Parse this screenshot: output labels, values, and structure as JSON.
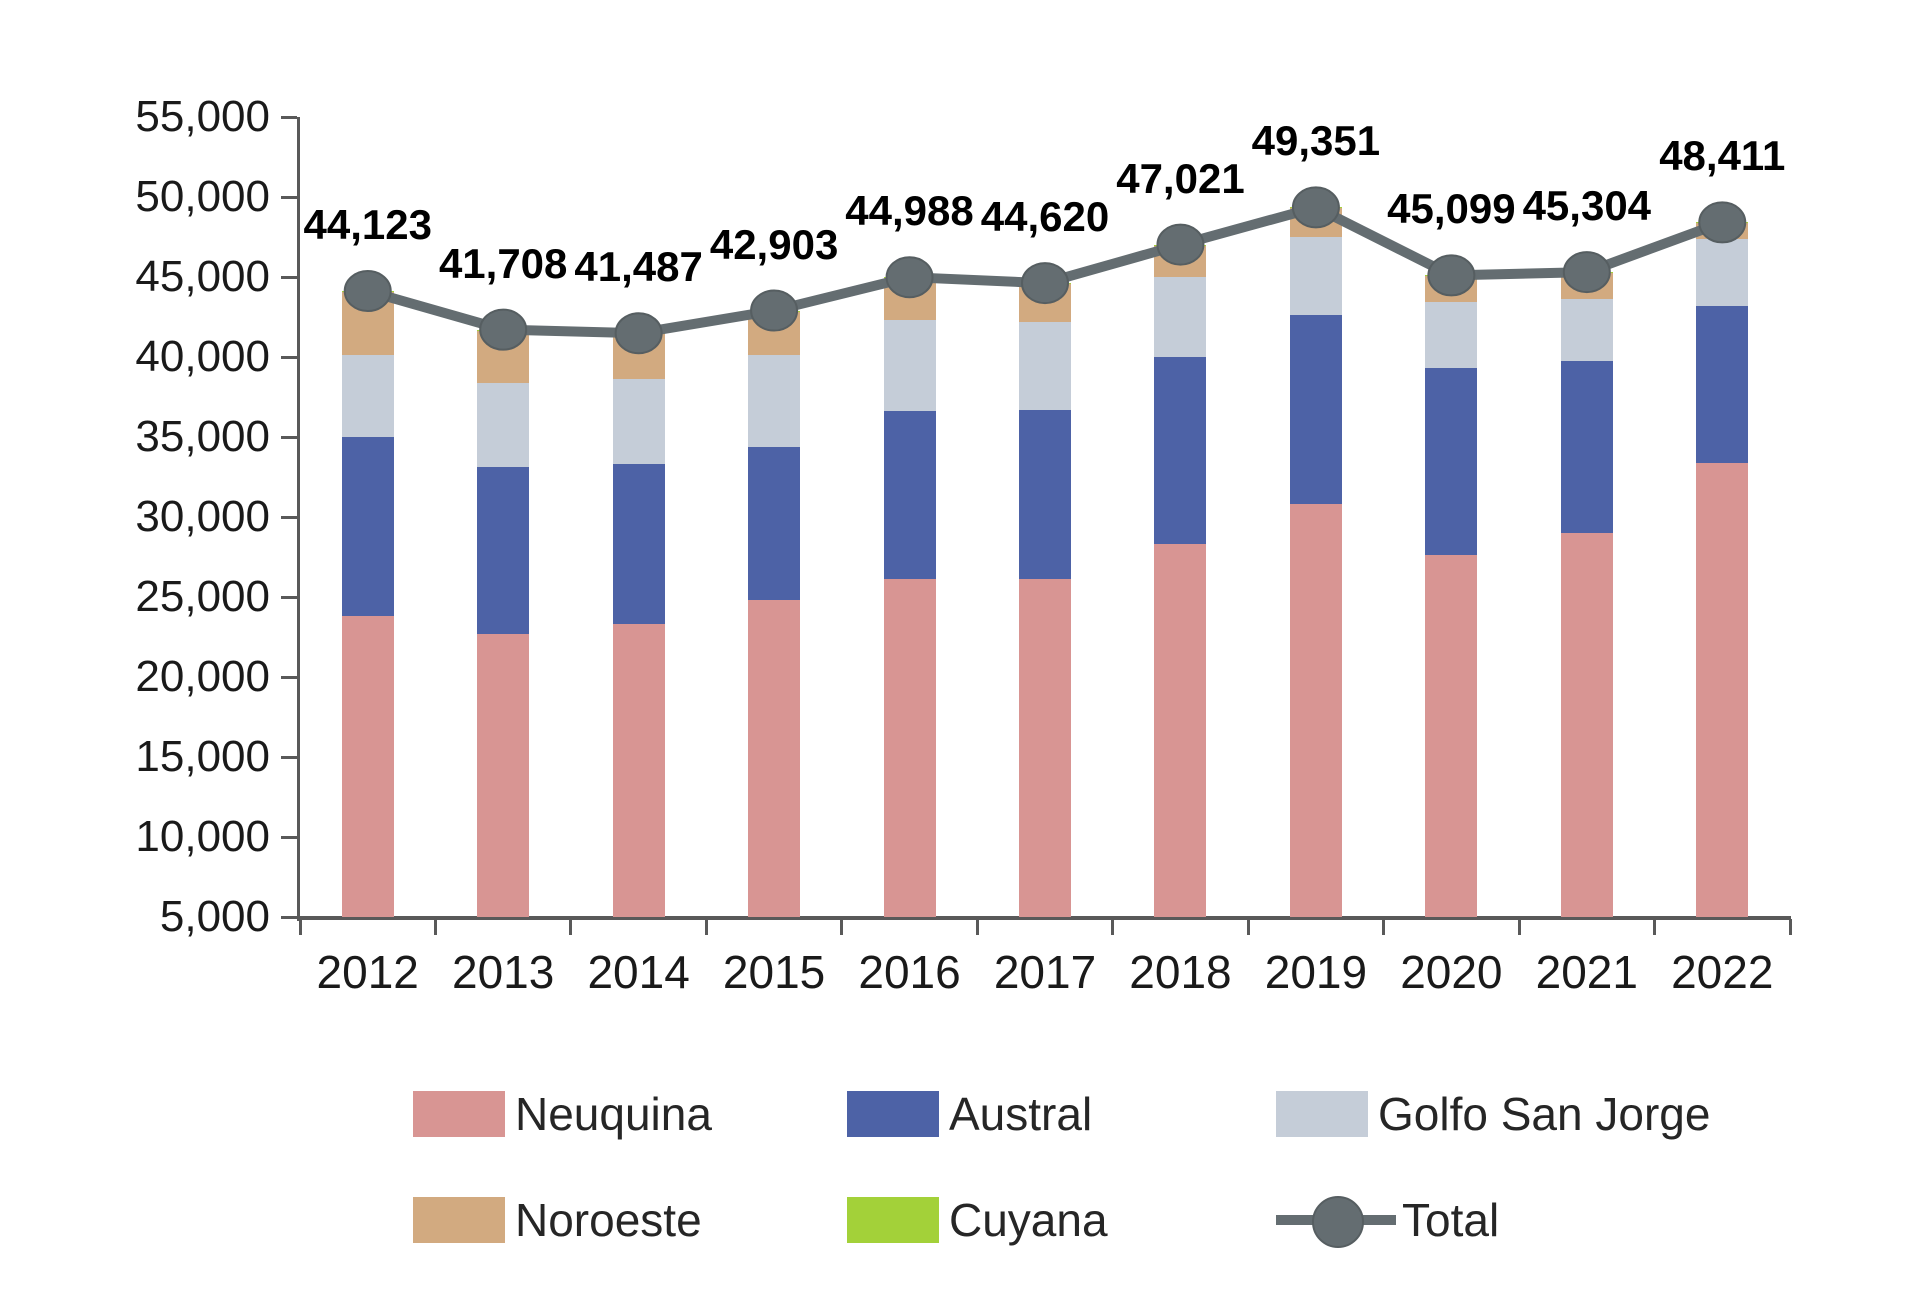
{
  "page": {
    "background": "#ffffff"
  },
  "chart_data": {
    "type": "bar",
    "subtype": "stacked-column-with-total-line",
    "title": "",
    "xlabel": "",
    "ylabel": "",
    "categories": [
      "2012",
      "2013",
      "2014",
      "2015",
      "2016",
      "2017",
      "2018",
      "2019",
      "2020",
      "2021",
      "2022"
    ],
    "series": [
      {
        "name": "Neuquina",
        "color": "#d89593",
        "values": [
          23800,
          22700,
          23300,
          24800,
          26100,
          26100,
          28300,
          30800,
          27600,
          29000,
          33400
        ]
      },
      {
        "name": "Austral",
        "color": "#4d62a6",
        "values": [
          11200,
          10400,
          10000,
          9600,
          10500,
          10600,
          11700,
          11850,
          11700,
          10750,
          9800
        ]
      },
      {
        "name": "Golfo San Jorge",
        "color": "#c5cdd8",
        "values": [
          5100,
          5300,
          5300,
          5700,
          5700,
          5500,
          5000,
          4850,
          4150,
          3850,
          4200
        ]
      },
      {
        "name": "Noroeste",
        "color": "#d2aa80",
        "values": [
          4000,
          3280,
          2860,
          2775,
          2660,
          2395,
          2000,
          1830,
          1630,
          1685,
          990
        ]
      },
      {
        "name": "Cuyana",
        "color": "#a3d139",
        "values": [
          23,
          28,
          27,
          28,
          28,
          25,
          21,
          21,
          19,
          19,
          21
        ]
      }
    ],
    "line_series": {
      "name": "Total",
      "color": "#646d71",
      "marker_stroke": "#565e61",
      "values": [
        44123,
        41708,
        41487,
        42903,
        44988,
        44620,
        47021,
        49351,
        45099,
        45304,
        48411
      ],
      "labels": [
        "44,123",
        "41,708",
        "41,487",
        "42,903",
        "44,988",
        "44,620",
        "47,021",
        "49,351",
        "45,099",
        "45,304",
        "48,411"
      ]
    },
    "ylim": [
      5000,
      55000
    ],
    "ytick_step": 5000,
    "ytick_labels": [
      "55,000",
      "50,000",
      "45,000",
      "40,000",
      "35,000",
      "30,000",
      "25,000",
      "20,000",
      "15,000",
      "10,000",
      "5,000"
    ],
    "grid": false,
    "legend_position": "bottom",
    "axis_color": "#595959",
    "label_color": "#1a1a1a"
  },
  "legend": {
    "rows": [
      [
        {
          "label": "Neuquina",
          "marker": "box",
          "color": "#d89593"
        },
        {
          "label": "Austral",
          "marker": "box",
          "color": "#4d62a6"
        },
        {
          "label": "Golfo San Jorge",
          "marker": "box",
          "color": "#c5cdd8"
        }
      ],
      [
        {
          "label": "Noroeste",
          "marker": "box",
          "color": "#d2aa80"
        },
        {
          "label": "Cuyana",
          "marker": "box",
          "color": "#a3d139"
        },
        {
          "label": "Total",
          "marker": "line",
          "color": "#646d71"
        }
      ]
    ]
  }
}
